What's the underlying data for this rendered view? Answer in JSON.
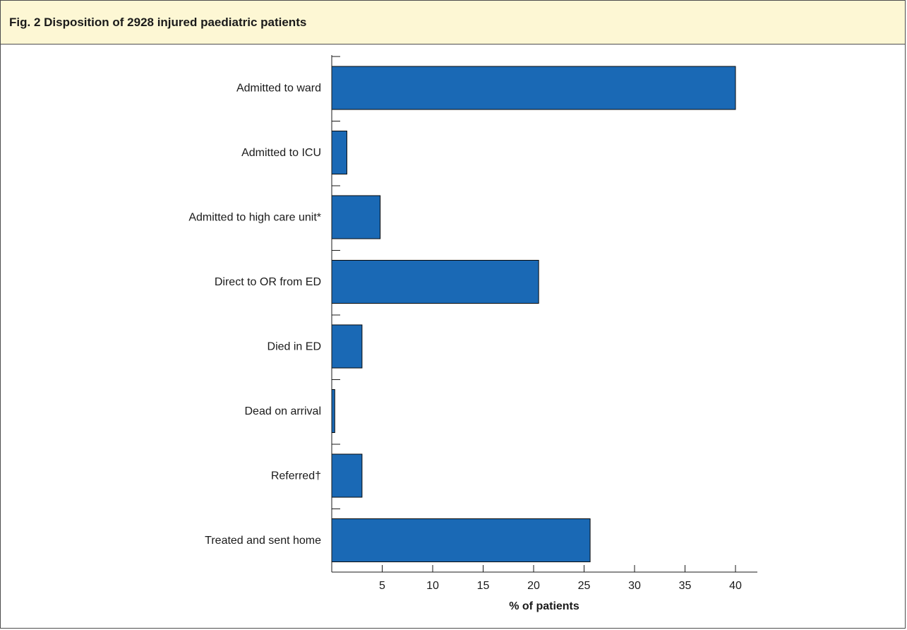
{
  "figure": {
    "title": "Fig. 2 Disposition of 2928 injured paediatric patients"
  },
  "colors": {
    "bar_fill": "#1a69b5",
    "bar_stroke": "#0a0a0a",
    "axis": "#1a1a1a",
    "header_bg": "#fdf7d4"
  },
  "chart_data": {
    "type": "bar",
    "orientation": "horizontal",
    "categories": [
      "Admitted to ward",
      "Admitted to ICU",
      "Admitted to high care unit*",
      "Direct to OR from ED",
      "Died in ED",
      "Dead on arrival",
      "Referred†",
      "Treated and sent home"
    ],
    "values": [
      40.0,
      1.5,
      4.8,
      20.5,
      3.0,
      0.3,
      3.0,
      25.6
    ],
    "xlabel": "% of patients",
    "ylabel": "",
    "xlim": [
      0,
      42.2
    ],
    "xticks": [
      5,
      10,
      15,
      20,
      25,
      30,
      35,
      40
    ],
    "xtick_labels": [
      "5",
      "10",
      "15",
      "20",
      "25",
      "30",
      "35",
      "40"
    ],
    "grid": false,
    "legend": "none"
  }
}
